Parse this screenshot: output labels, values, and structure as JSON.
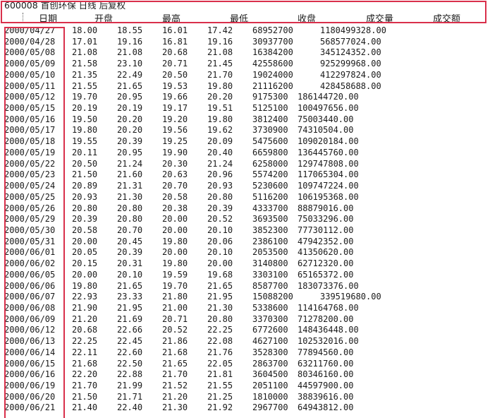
{
  "document": {
    "title_line": "600008 首创环保 日线 后复权",
    "columns": [
      "日期",
      "开盘",
      "最高",
      "最低",
      "收盘",
      "成交量",
      "成交额"
    ],
    "rows": [
      [
        "2000/04/27",
        "18.00",
        "18.55",
        "16.01",
        "17.42",
        "68952700",
        "1180499328.00"
      ],
      [
        "2000/04/28",
        "17.01",
        "19.16",
        "16.81",
        "19.16",
        "30937700",
        "568577024.00"
      ],
      [
        "2000/05/08",
        "21.08",
        "21.08",
        "20.68",
        "21.08",
        "16384200",
        "345124352.00"
      ],
      [
        "2000/05/09",
        "21.58",
        "23.10",
        "20.71",
        "21.45",
        "42558600",
        "925299968.00"
      ],
      [
        "2000/05/10",
        "21.35",
        "22.49",
        "20.50",
        "21.70",
        "19024000",
        "412297824.00"
      ],
      [
        "2000/05/11",
        "21.55",
        "21.65",
        "19.53",
        "19.80",
        "21116200",
        "428458688.00"
      ],
      [
        "2000/05/12",
        "19.70",
        "20.95",
        "19.66",
        "20.20",
        "9175300",
        "186144720.00"
      ],
      [
        "2000/05/15",
        "20.19",
        "20.19",
        "19.17",
        "19.51",
        "5125100",
        "100497656.00"
      ],
      [
        "2000/05/16",
        "19.50",
        "20.20",
        "19.20",
        "19.80",
        "3812400",
        "75003440.00"
      ],
      [
        "2000/05/17",
        "19.80",
        "20.20",
        "19.56",
        "19.62",
        "3730900",
        "74310504.00"
      ],
      [
        "2000/05/18",
        "19.55",
        "20.39",
        "19.25",
        "20.09",
        "5475600",
        "109020184.00"
      ],
      [
        "2000/05/19",
        "20.11",
        "20.95",
        "19.90",
        "20.40",
        "6659800",
        "136445760.00"
      ],
      [
        "2000/05/22",
        "20.50",
        "21.24",
        "20.30",
        "21.24",
        "6258000",
        "129747808.00"
      ],
      [
        "2000/05/23",
        "21.50",
        "21.60",
        "20.63",
        "20.96",
        "5574200",
        "117065304.00"
      ],
      [
        "2000/05/24",
        "20.89",
        "21.31",
        "20.70",
        "20.93",
        "5230600",
        "109747224.00"
      ],
      [
        "2000/05/25",
        "20.93",
        "21.30",
        "20.58",
        "20.80",
        "5116200",
        "106195368.00"
      ],
      [
        "2000/05/26",
        "20.80",
        "20.80",
        "20.38",
        "20.39",
        "4333700",
        "88879016.00"
      ],
      [
        "2000/05/29",
        "20.39",
        "20.80",
        "20.00",
        "20.52",
        "3693500",
        "75033296.00"
      ],
      [
        "2000/05/30",
        "20.58",
        "20.70",
        "20.00",
        "20.10",
        "3852300",
        "77730112.00"
      ],
      [
        "2000/05/31",
        "20.00",
        "20.45",
        "19.80",
        "20.06",
        "2386100",
        "47942352.00"
      ],
      [
        "2000/06/01",
        "20.05",
        "20.39",
        "20.00",
        "20.10",
        "2053500",
        "41350620.00"
      ],
      [
        "2000/06/02",
        "20.15",
        "20.31",
        "19.80",
        "20.00",
        "3140800",
        "62712320.00"
      ],
      [
        "2000/06/05",
        "20.00",
        "20.10",
        "19.59",
        "19.68",
        "3303100",
        "65165372.00"
      ],
      [
        "2000/06/06",
        "19.80",
        "21.65",
        "19.70",
        "21.65",
        "8587700",
        "183073376.00"
      ],
      [
        "2000/06/07",
        "22.93",
        "23.33",
        "21.80",
        "21.95",
        "15088200",
        "339519680.00"
      ],
      [
        "2000/06/08",
        "21.90",
        "21.95",
        "21.00",
        "21.30",
        "5338600",
        "114164768.00"
      ],
      [
        "2000/06/09",
        "21.20",
        "21.69",
        "20.71",
        "20.80",
        "3370300",
        "71278200.00"
      ],
      [
        "2000/06/12",
        "20.68",
        "22.66",
        "20.52",
        "22.25",
        "6772600",
        "148436448.00"
      ],
      [
        "2000/06/13",
        "22.25",
        "22.45",
        "21.86",
        "22.08",
        "4627100",
        "102532016.00"
      ],
      [
        "2000/06/14",
        "22.11",
        "22.60",
        "21.68",
        "21.76",
        "3528300",
        "77894560.00"
      ],
      [
        "2000/06/15",
        "21.68",
        "22.50",
        "21.65",
        "22.05",
        "2863700",
        "63211760.00"
      ],
      [
        "2000/06/16",
        "22.20",
        "22.88",
        "21.70",
        "21.81",
        "3604500",
        "80346160.00"
      ],
      [
        "2000/06/19",
        "21.70",
        "21.99",
        "21.52",
        "21.55",
        "2051100",
        "44597900.00"
      ],
      [
        "2000/06/20",
        "21.50",
        "21.71",
        "21.20",
        "21.25",
        "1810000",
        "38839616.00"
      ],
      [
        "2000/06/21",
        "21.40",
        "22.40",
        "21.30",
        "21.92",
        "2967700",
        "64943812.00"
      ]
    ]
  },
  "highlight": {
    "color": "#d9304b"
  }
}
